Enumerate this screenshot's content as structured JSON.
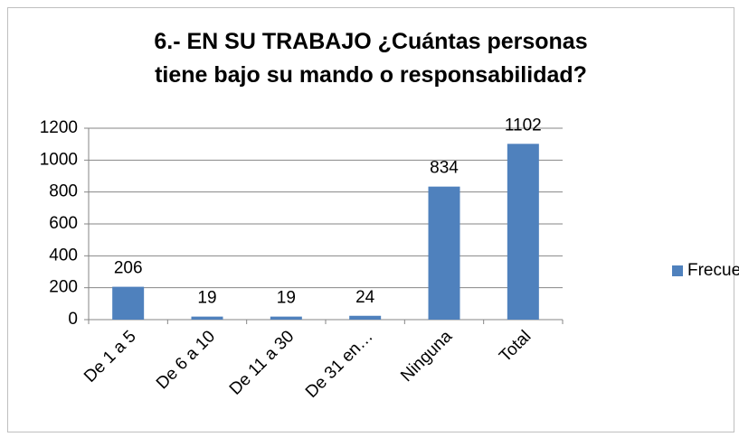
{
  "chart_data": {
    "type": "bar",
    "title": "6.- EN SU TRABAJO ¿Cuántas personas tiene bajo su mando o responsabilidad?",
    "categories": [
      "De 1 a 5",
      "De 6 a 10",
      "De 11 a 30",
      "De 31 en…",
      "Ninguna",
      "Total"
    ],
    "series": [
      {
        "name": "Frecuencia",
        "color": "#4f81bd",
        "values": [
          206,
          19,
          19,
          24,
          834,
          1102
        ]
      }
    ],
    "ylim": [
      0,
      1200
    ],
    "yticks": [
      0,
      200,
      400,
      600,
      800,
      1000,
      1200
    ],
    "grid": true,
    "legend": "right"
  }
}
